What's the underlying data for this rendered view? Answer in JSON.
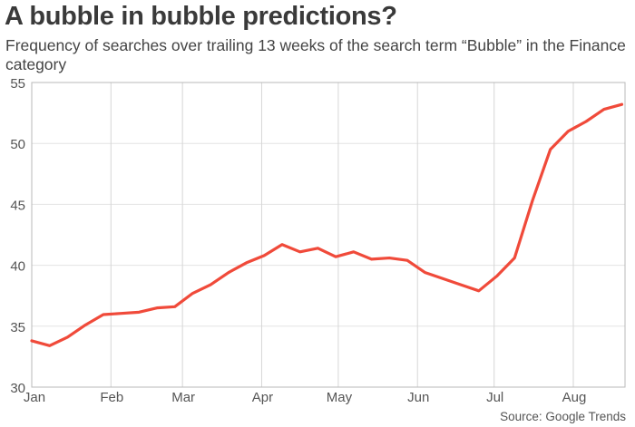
{
  "chart_data": {
    "type": "line",
    "title": "A bubble in bubble predictions?",
    "subtitle": "Frequency of searches over trailing 13 weeks of the search term “Bubble” in the Finance category",
    "source": "Source: Google Trends",
    "xlabel": "",
    "ylabel": "",
    "ylim": [
      30,
      55
    ],
    "yticks": [
      "30",
      "35",
      "40",
      "45",
      "50",
      "55"
    ],
    "xticks": [
      "Jan",
      "Feb",
      "Mar",
      "Apr",
      "May",
      "Jun",
      "Jul",
      "Aug"
    ],
    "grid": true,
    "line_color": "#f04a3a",
    "x": [
      "Jan 1",
      "Jan 8",
      "Jan 15",
      "Jan 22",
      "Jan 29",
      "Feb 5",
      "Feb 12",
      "Feb 19",
      "Feb 26",
      "Mar 5",
      "Mar 12",
      "Mar 19",
      "Mar 26",
      "Apr 2",
      "Apr 9",
      "Apr 16",
      "Apr 23",
      "Apr 30",
      "May 7",
      "May 14",
      "May 21",
      "May 28",
      "Jun 4",
      "Jun 11",
      "Jun 18",
      "Jun 25",
      "Jul 2",
      "Jul 9",
      "Jul 16",
      "Jul 23",
      "Jul 30",
      "Aug 6",
      "Aug 13",
      "Aug 20"
    ],
    "values": [
      33.8,
      33.4,
      34.1,
      35.1,
      35.95,
      36.05,
      36.15,
      36.5,
      36.6,
      37.7,
      38.4,
      39.4,
      40.2,
      40.8,
      41.7,
      41.1,
      41.4,
      40.7,
      41.1,
      40.5,
      40.6,
      40.4,
      39.4,
      38.9,
      38.4,
      37.9,
      39.1,
      40.6,
      45.3,
      49.5,
      51.0,
      51.8,
      52.8,
      53.2
    ]
  }
}
